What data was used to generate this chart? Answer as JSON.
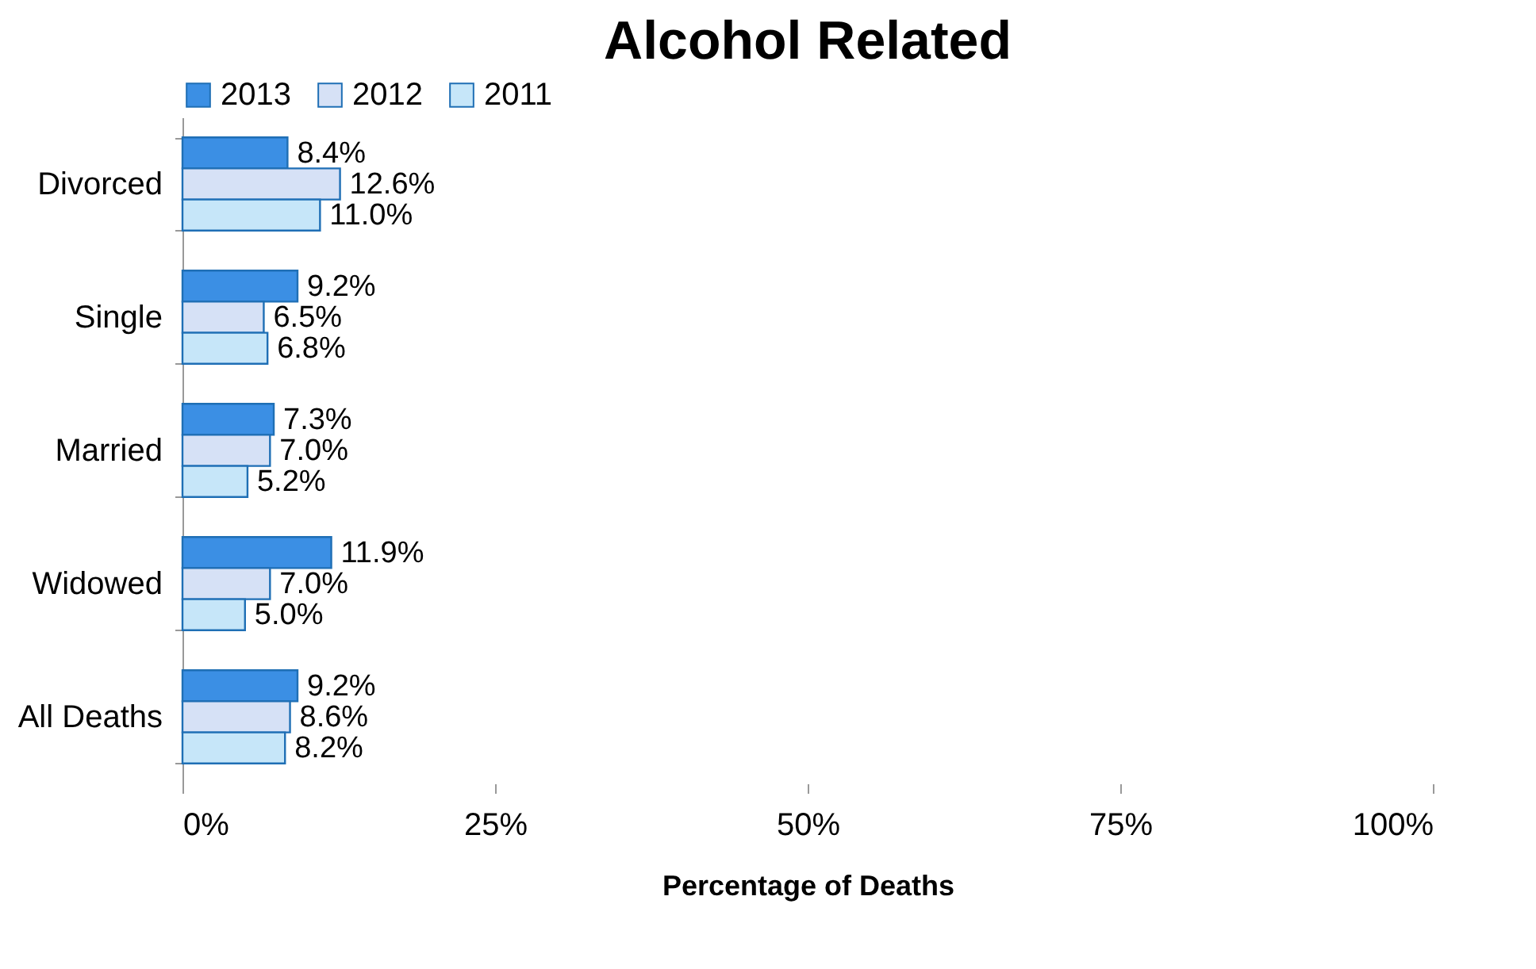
{
  "chart_data": {
    "type": "bar",
    "orientation": "horizontal",
    "title": "Alcohol Related",
    "xlabel": "Percentage of Deaths",
    "categories": [
      "Divorced",
      "Single",
      "Married",
      "Widowed",
      "All Deaths"
    ],
    "series": [
      {
        "name": "2013",
        "color": "#3b8fe4",
        "values": [
          8.4,
          9.2,
          7.3,
          11.9,
          9.2
        ],
        "value_labels": [
          "8.4%",
          "9.2%",
          "7.3%",
          "11.9%",
          "9.2%"
        ]
      },
      {
        "name": "2012",
        "color": "#d6e1f6",
        "values": [
          12.6,
          6.5,
          7.0,
          7.0,
          8.6
        ],
        "value_labels": [
          "12.6%",
          "6.5%",
          "7.0%",
          "7.0%",
          "8.6%"
        ]
      },
      {
        "name": "2011",
        "color": "#c6e6f9",
        "values": [
          11.0,
          6.8,
          5.2,
          5.0,
          8.2
        ],
        "value_labels": [
          "11.0%",
          "6.8%",
          "5.2%",
          "5.0%",
          "8.2%"
        ]
      }
    ],
    "xlim": [
      0,
      100
    ],
    "xticks": [
      {
        "value": 0,
        "label": "0%"
      },
      {
        "value": 25,
        "label": "25%"
      },
      {
        "value": 50,
        "label": "50%"
      },
      {
        "value": 75,
        "label": "75%"
      },
      {
        "value": 100,
        "label": "100%"
      }
    ],
    "legend": "top",
    "grid": false
  }
}
